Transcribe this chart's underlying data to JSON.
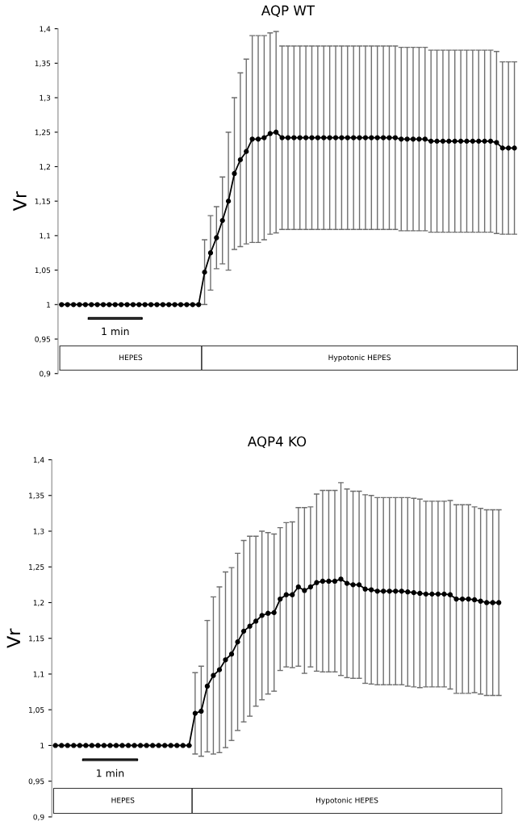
{
  "chart_data": [
    {
      "type": "line",
      "title": "AQP WT",
      "ylabel": "Vr",
      "ylim": [
        0.9,
        1.4
      ],
      "yticks": [
        {
          "value": 0.9,
          "label": "0,9"
        },
        {
          "value": 0.95,
          "label": "0,95"
        },
        {
          "value": 1,
          "label": "1"
        },
        {
          "value": 1.05,
          "label": "1,05"
        },
        {
          "value": 1.1,
          "label": "1,1"
        },
        {
          "value": 1.15,
          "label": "1,15"
        },
        {
          "value": 1.2,
          "label": "1,2"
        },
        {
          "value": 1.25,
          "label": "1,25"
        },
        {
          "value": 1.3,
          "label": "1,3"
        },
        {
          "value": 1.35,
          "label": "1,35"
        },
        {
          "value": 1.4,
          "label": "1,4"
        }
      ],
      "categories": [
        null,
        null,
        null,
        null,
        null,
        null,
        null,
        null,
        null,
        null,
        null,
        null,
        null,
        null,
        null,
        null,
        null,
        null,
        null,
        null,
        null,
        null,
        null,
        null,
        null,
        null,
        null,
        null,
        null,
        null,
        null,
        null,
        null,
        null,
        null,
        null,
        null,
        null,
        null,
        null,
        null,
        null,
        null,
        null,
        null,
        null,
        null,
        null,
        null,
        null,
        null,
        null,
        null,
        null,
        null,
        null,
        null,
        null,
        null,
        null,
        null,
        null,
        null,
        null,
        null,
        null,
        null,
        null,
        null,
        null,
        null,
        null,
        null,
        null,
        null,
        null,
        null
      ],
      "marker": "circle",
      "grid": false,
      "tick_labels": "y",
      "series": [
        {
          "color": "#000000",
          "values": [
            1,
            1,
            1,
            1,
            1,
            1,
            1,
            1,
            1,
            1,
            1,
            1,
            1,
            1,
            1,
            1,
            1,
            1,
            1,
            1,
            1,
            1,
            1,
            1,
            1.047,
            1.075,
            1.097,
            1.122,
            1.15,
            1.19,
            1.21,
            1.222,
            1.24,
            1.24,
            1.242,
            1.248,
            1.25,
            1.242,
            1.242,
            1.242,
            1.242,
            1.242,
            1.242,
            1.242,
            1.242,
            1.242,
            1.242,
            1.242,
            1.242,
            1.242,
            1.242,
            1.242,
            1.242,
            1.242,
            1.242,
            1.242,
            1.242,
            1.24,
            1.24,
            1.24,
            1.24,
            1.24,
            1.237,
            1.237,
            1.237,
            1.237,
            1.237,
            1.237,
            1.237,
            1.237,
            1.237,
            1.237,
            1.237,
            1.235,
            1.227,
            1.227,
            1.227
          ],
          "errors": [
            null,
            null,
            null,
            null,
            null,
            null,
            null,
            null,
            null,
            null,
            null,
            null,
            null,
            null,
            null,
            null,
            null,
            null,
            null,
            null,
            null,
            null,
            null,
            null,
            0.047,
            0.054,
            0.045,
            0.063,
            0.1,
            0.11,
            0.126,
            0.134,
            0.15,
            0.15,
            0.148,
            0.146,
            0.146,
            0.133,
            0.133,
            0.133,
            0.133,
            0.133,
            0.133,
            0.133,
            0.133,
            0.133,
            0.133,
            0.133,
            0.133,
            0.133,
            0.133,
            0.133,
            0.133,
            0.133,
            0.133,
            0.133,
            0.133,
            0.133,
            0.133,
            0.133,
            0.133,
            0.133,
            0.132,
            0.132,
            0.132,
            0.132,
            0.132,
            0.132,
            0.132,
            0.132,
            0.132,
            0.132,
            0.132,
            0.132,
            0.125,
            0.125,
            0.125
          ]
        }
      ],
      "annotations": [
        "1 min",
        "HEPES",
        "Hypotonic HEPES"
      ]
    },
    {
      "type": "line",
      "title": "AQP4 KO",
      "ylabel": "Vr",
      "ylim": [
        0.9,
        1.4
      ],
      "yticks": [
        {
          "value": 0.9,
          "label": "0,9"
        },
        {
          "value": 0.95,
          "label": "0,95"
        },
        {
          "value": 1,
          "label": "1"
        },
        {
          "value": 1.05,
          "label": "1,05"
        },
        {
          "value": 1.1,
          "label": "1,1"
        },
        {
          "value": 1.15,
          "label": "1,15"
        },
        {
          "value": 1.2,
          "label": "1,2"
        },
        {
          "value": 1.25,
          "label": "1,25"
        },
        {
          "value": 1.3,
          "label": "1,3"
        },
        {
          "value": 1.35,
          "label": "1,35"
        },
        {
          "value": 1.4,
          "label": "1,4"
        }
      ],
      "categories": [
        null,
        null,
        null,
        null,
        null,
        null,
        null,
        null,
        null,
        null,
        null,
        null,
        null,
        null,
        null,
        null,
        null,
        null,
        null,
        null,
        null,
        null,
        null,
        null,
        null,
        null,
        null,
        null,
        null,
        null,
        null,
        null,
        null,
        null,
        null,
        null,
        null,
        null,
        null,
        null,
        null,
        null,
        null,
        null,
        null,
        null,
        null,
        null,
        null,
        null,
        null,
        null,
        null,
        null,
        null,
        null,
        null,
        null,
        null,
        null,
        null,
        null,
        null,
        null,
        null,
        null,
        null,
        null,
        null,
        null,
        null,
        null,
        null,
        null
      ],
      "marker": "circle",
      "grid": false,
      "tick_labels": "y",
      "series": [
        {
          "color": "#000000",
          "values": [
            1,
            1,
            1,
            1,
            1,
            1,
            1,
            1,
            1,
            1,
            1,
            1,
            1,
            1,
            1,
            1,
            1,
            1,
            1,
            1,
            1,
            1,
            1,
            1.045,
            1.048,
            1.083,
            1.098,
            1.106,
            1.12,
            1.128,
            1.145,
            1.16,
            1.167,
            1.174,
            1.182,
            1.185,
            1.186,
            1.205,
            1.211,
            1.211,
            1.222,
            1.217,
            1.222,
            1.228,
            1.23,
            1.23,
            1.23,
            1.233,
            1.227,
            1.225,
            1.225,
            1.219,
            1.218,
            1.216,
            1.216,
            1.216,
            1.216,
            1.216,
            1.215,
            1.214,
            1.213,
            1.212,
            1.212,
            1.212,
            1.212,
            1.211,
            1.205,
            1.205,
            1.205,
            1.204,
            1.202,
            1.2,
            1.2,
            1.2
          ],
          "errors": [
            null,
            null,
            null,
            null,
            null,
            null,
            null,
            null,
            null,
            null,
            null,
            null,
            null,
            null,
            null,
            null,
            null,
            null,
            null,
            null,
            null,
            null,
            null,
            0.057,
            0.063,
            0.092,
            0.11,
            0.116,
            0.123,
            0.121,
            0.124,
            0.127,
            0.126,
            0.119,
            0.118,
            0.113,
            0.11,
            0.1,
            0.101,
            0.102,
            0.111,
            0.116,
            0.112,
            0.124,
            0.127,
            0.127,
            0.127,
            0.135,
            0.132,
            0.131,
            0.131,
            0.132,
            0.132,
            0.131,
            0.131,
            0.131,
            0.131,
            0.131,
            0.132,
            0.132,
            0.132,
            0.13,
            0.13,
            0.13,
            0.13,
            0.132,
            0.132,
            0.132,
            0.132,
            0.13,
            0.13,
            0.13,
            0.13,
            0.13
          ]
        }
      ],
      "annotations": [
        "1 min",
        "HEPES",
        "Hypotonic HEPES"
      ]
    }
  ]
}
